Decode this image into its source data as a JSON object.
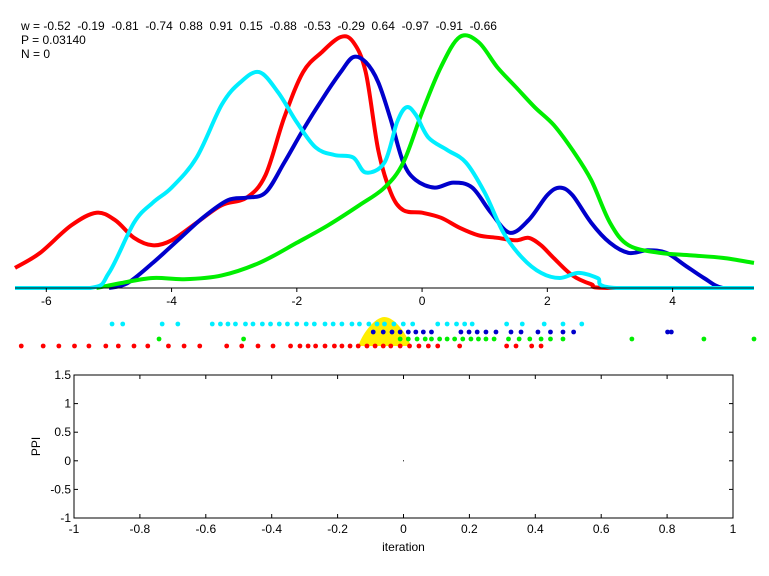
{
  "header": {
    "w_line": "w = -0.52  -0.19  -0.81  -0.74  0.88  0.91  0.15  -0.88  -0.53  -0.29  0.64  -0.97  -0.91  -0.66",
    "p_line": "P = 0.03140",
    "n_line": "N = 0"
  },
  "colors": {
    "red": "#ff0000",
    "blue": "#0000cc",
    "green": "#00ee00",
    "cyan": "#00eeff",
    "yellow": "#ffee00"
  },
  "chart_data": [
    {
      "type": "line",
      "xlim": [
        -6.5,
        5.3
      ],
      "ylim": [
        0,
        1
      ],
      "grid": false,
      "x_ticks": [
        -6,
        -4,
        -2,
        0,
        2,
        4
      ],
      "series": [
        {
          "color": "red",
          "points": [
            [
              -6.5,
              0.08
            ],
            [
              -6.1,
              0.14
            ],
            [
              -5.6,
              0.25
            ],
            [
              -5.2,
              0.3
            ],
            [
              -4.9,
              0.27
            ],
            [
              -4.6,
              0.2
            ],
            [
              -4.3,
              0.17
            ],
            [
              -4.0,
              0.19
            ],
            [
              -3.6,
              0.26
            ],
            [
              -3.2,
              0.33
            ],
            [
              -2.8,
              0.36
            ],
            [
              -2.5,
              0.45
            ],
            [
              -2.2,
              0.68
            ],
            [
              -1.9,
              0.86
            ],
            [
              -1.6,
              0.94
            ],
            [
              -1.3,
              1.0
            ],
            [
              -1.1,
              0.98
            ],
            [
              -0.9,
              0.86
            ],
            [
              -0.7,
              0.55
            ],
            [
              -0.5,
              0.38
            ],
            [
              -0.3,
              0.31
            ],
            [
              0.0,
              0.3
            ],
            [
              0.3,
              0.28
            ],
            [
              0.6,
              0.24
            ],
            [
              0.9,
              0.21
            ],
            [
              1.2,
              0.2
            ],
            [
              1.5,
              0.19
            ],
            [
              1.7,
              0.2
            ],
            [
              1.9,
              0.17
            ],
            [
              2.1,
              0.12
            ],
            [
              2.4,
              0.05
            ],
            [
              2.7,
              0.015
            ],
            [
              3.0,
              0.0
            ],
            [
              5.3,
              0.0
            ]
          ]
        },
        {
          "color": "blue",
          "points": [
            [
              -5.0,
              0.0
            ],
            [
              -4.7,
              0.02
            ],
            [
              -4.3,
              0.1
            ],
            [
              -3.9,
              0.19
            ],
            [
              -3.5,
              0.28
            ],
            [
              -3.1,
              0.35
            ],
            [
              -2.8,
              0.36
            ],
            [
              -2.5,
              0.38
            ],
            [
              -2.2,
              0.5
            ],
            [
              -1.9,
              0.63
            ],
            [
              -1.6,
              0.75
            ],
            [
              -1.3,
              0.86
            ],
            [
              -1.1,
              0.92
            ],
            [
              -0.9,
              0.9
            ],
            [
              -0.7,
              0.82
            ],
            [
              -0.5,
              0.67
            ],
            [
              -0.3,
              0.5
            ],
            [
              -0.1,
              0.43
            ],
            [
              0.2,
              0.4
            ],
            [
              0.5,
              0.42
            ],
            [
              0.8,
              0.4
            ],
            [
              1.1,
              0.3
            ],
            [
              1.4,
              0.22
            ],
            [
              1.7,
              0.27
            ],
            [
              2.0,
              0.37
            ],
            [
              2.2,
              0.4
            ],
            [
              2.4,
              0.37
            ],
            [
              2.7,
              0.26
            ],
            [
              3.0,
              0.18
            ],
            [
              3.3,
              0.14
            ],
            [
              3.6,
              0.15
            ],
            [
              3.9,
              0.14
            ],
            [
              4.2,
              0.09
            ],
            [
              4.5,
              0.04
            ],
            [
              4.8,
              0.0
            ],
            [
              5.3,
              0.0
            ]
          ]
        },
        {
          "color": "green",
          "points": [
            [
              -5.2,
              0.0
            ],
            [
              -4.8,
              0.02
            ],
            [
              -4.3,
              0.04
            ],
            [
              -3.8,
              0.035
            ],
            [
              -3.2,
              0.05
            ],
            [
              -2.6,
              0.1
            ],
            [
              -2.0,
              0.18
            ],
            [
              -1.5,
              0.25
            ],
            [
              -1.0,
              0.33
            ],
            [
              -0.6,
              0.4
            ],
            [
              -0.3,
              0.5
            ],
            [
              0.0,
              0.7
            ],
            [
              0.3,
              0.88
            ],
            [
              0.6,
              1.0
            ],
            [
              0.9,
              0.98
            ],
            [
              1.2,
              0.88
            ],
            [
              1.5,
              0.8
            ],
            [
              1.8,
              0.72
            ],
            [
              2.1,
              0.65
            ],
            [
              2.4,
              0.55
            ],
            [
              2.7,
              0.43
            ],
            [
              3.0,
              0.26
            ],
            [
              3.3,
              0.17
            ],
            [
              3.8,
              0.14
            ],
            [
              4.3,
              0.13
            ],
            [
              4.8,
              0.12
            ],
            [
              5.3,
              0.1
            ]
          ]
        },
        {
          "color": "cyan",
          "points": [
            [
              -6.5,
              0.0
            ],
            [
              -5.3,
              0.0
            ],
            [
              -5.0,
              0.06
            ],
            [
              -4.6,
              0.26
            ],
            [
              -4.3,
              0.34
            ],
            [
              -4.0,
              0.4
            ],
            [
              -3.6,
              0.52
            ],
            [
              -3.2,
              0.73
            ],
            [
              -2.9,
              0.82
            ],
            [
              -2.6,
              0.86
            ],
            [
              -2.3,
              0.78
            ],
            [
              -2.0,
              0.66
            ],
            [
              -1.7,
              0.56
            ],
            [
              -1.4,
              0.53
            ],
            [
              -1.1,
              0.52
            ],
            [
              -0.9,
              0.46
            ],
            [
              -0.6,
              0.5
            ],
            [
              -0.4,
              0.66
            ],
            [
              -0.25,
              0.72
            ],
            [
              -0.1,
              0.69
            ],
            [
              0.1,
              0.6
            ],
            [
              0.4,
              0.55
            ],
            [
              0.7,
              0.5
            ],
            [
              1.0,
              0.38
            ],
            [
              1.3,
              0.22
            ],
            [
              1.6,
              0.12
            ],
            [
              1.9,
              0.06
            ],
            [
              2.2,
              0.04
            ],
            [
              2.5,
              0.06
            ],
            [
              2.8,
              0.04
            ],
            [
              3.1,
              0.0
            ],
            [
              5.3,
              0.0
            ]
          ]
        }
      ]
    },
    {
      "type": "scatter",
      "xlim": [
        -6.5,
        5.3
      ],
      "rows": [
        {
          "color": "cyan",
          "x": [
            -4.95,
            -4.78,
            -4.15,
            -3.9,
            -3.35,
            -3.22,
            -3.1,
            -2.98,
            -2.82,
            -2.7,
            -2.55,
            -2.42,
            -2.28,
            -2.15,
            -2.0,
            -1.85,
            -1.72,
            -1.55,
            -1.42,
            -1.28,
            -1.12,
            -1.0,
            -0.85,
            -0.72,
            -0.6,
            -0.45,
            -0.3,
            -0.15,
            0.25,
            0.4,
            0.55,
            0.68,
            0.8,
            1.35,
            1.6,
            1.95,
            2.25,
            2.55
          ]
        },
        {
          "color": "blue",
          "x": [
            -0.78,
            -0.62,
            -0.48,
            -0.35,
            -0.22,
            -0.1,
            0.02,
            0.15,
            0.62,
            0.75,
            0.88,
            1.02,
            1.18,
            1.42,
            1.58,
            1.85,
            2.05,
            2.25,
            2.42,
            3.92,
            3.98
          ]
        },
        {
          "color": "green",
          "x": [
            -4.2,
            -2.85,
            -0.35,
            -0.22,
            -0.08,
            0.05,
            0.15,
            0.28,
            0.4,
            0.52,
            0.65,
            0.78,
            0.9,
            1.02,
            1.15,
            1.38,
            1.55,
            1.72,
            1.9,
            2.05,
            2.25,
            3.35,
            4.5,
            5.3
          ]
        },
        {
          "color": "red",
          "x": [
            -6.4,
            -6.05,
            -5.8,
            -5.55,
            -5.32,
            -5.05,
            -4.85,
            -4.6,
            -4.38,
            -4.05,
            -3.8,
            -3.55,
            -3.12,
            -2.88,
            -2.62,
            -2.38,
            -2.1,
            -1.95,
            -1.82,
            -1.7,
            -1.55,
            -1.4,
            -1.28,
            -1.15,
            -1.02,
            -0.88,
            -0.75,
            -0.62,
            -0.5,
            -0.35,
            -0.2,
            -0.05,
            0.1,
            0.25,
            0.6,
            1.35,
            1.5,
            1.75,
            1.9
          ]
        }
      ],
      "highlight": {
        "color": "yellow",
        "x_center": -0.6,
        "half_width": 0.42
      }
    },
    {
      "type": "line",
      "title": "",
      "xlabel": "iteration",
      "ylabel": "PPI",
      "xlim": [
        -1,
        1
      ],
      "ylim": [
        -1,
        1.5
      ],
      "grid": false,
      "x_ticks": [
        -1,
        -0.8,
        -0.6,
        -0.4,
        -0.2,
        0,
        0.2,
        0.4,
        0.6,
        0.8,
        1
      ],
      "y_ticks": [
        -1,
        -0.5,
        0,
        0.5,
        1,
        1.5
      ],
      "series": [
        {
          "points": [
            [
              0,
              0
            ]
          ]
        }
      ]
    }
  ]
}
